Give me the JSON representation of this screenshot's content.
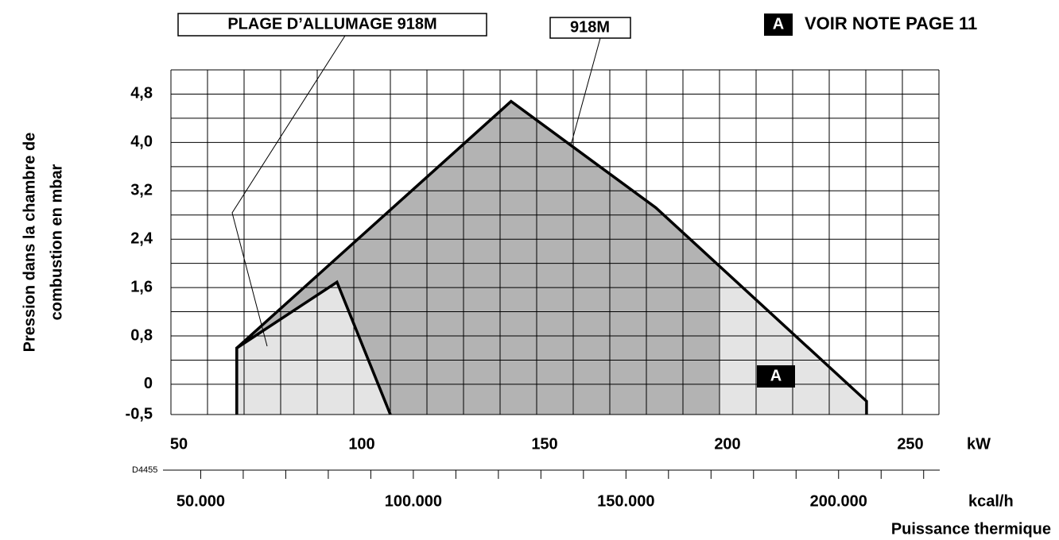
{
  "chart_data": {
    "type": "area",
    "code": "D4455",
    "ylabel": [
      "Pression dans la chambre de",
      "combustion en mbar"
    ],
    "xlabel": "Puissance thermique",
    "xunit": "kW",
    "x2unit": "kcal/h",
    "note": {
      "marker": "A",
      "text": "VOIR NOTE PAGE 11"
    },
    "annotation_region": {
      "label": "A",
      "x_from": 200
    },
    "fills": [
      "#b3b3b3",
      "#e4e4e4"
    ],
    "series": [
      {
        "name": "918M",
        "color": "#000000",
        "x": [
          68,
          68,
          143,
          182.6,
          240.2,
          240.2
        ],
        "values": [
          -0.5,
          0.6,
          4.68,
          2.92,
          -0.28,
          -0.5
        ]
      },
      {
        "name": "PLAGE D’ALLUMAGE 918M",
        "color": "#000000",
        "x": [
          68,
          68,
          95.4,
          110
        ],
        "values": [
          -0.5,
          0.6,
          1.69,
          -0.5
        ]
      }
    ],
    "xlim": [
      50,
      260
    ],
    "xticks": [
      50,
      100,
      150,
      200,
      250
    ],
    "xgrid": [
      50,
      60,
      70,
      80,
      90,
      100,
      110,
      120,
      130,
      140,
      150,
      160,
      170,
      180,
      190,
      200,
      210,
      220,
      230,
      240,
      250,
      260
    ],
    "ylim": [
      -0.5,
      5.2
    ],
    "yticks": [
      {
        "value": 4.8,
        "label": "4,8"
      },
      {
        "value": 4.0,
        "label": "4,0"
      },
      {
        "value": 3.2,
        "label": "3,2"
      },
      {
        "value": 2.4,
        "label": "2,4"
      },
      {
        "value": 1.6,
        "label": "1,6"
      },
      {
        "value": 0.8,
        "label": "0,8"
      },
      0,
      {
        "value": -0.5,
        "label": "-0,5"
      }
    ],
    "ygrid": [
      -0.5,
      0,
      0.4,
      0.8,
      1.2,
      1.6,
      2.0,
      2.4,
      2.8,
      3.2,
      3.6,
      4.0,
      4.4,
      4.8,
      5.2
    ],
    "x2lim": [
      43000,
      223600
    ],
    "x2ticks": [
      {
        "value": 50000,
        "label": "50.000"
      },
      {
        "value": 100000,
        "label": "100.000"
      },
      {
        "value": 150000,
        "label": "150.000"
      },
      {
        "value": 200000,
        "label": "200.000"
      }
    ],
    "x2minor": [
      50000,
      60000,
      70000,
      80000,
      90000,
      100000,
      110000,
      120000,
      130000,
      140000,
      150000,
      160000,
      170000,
      180000,
      190000,
      200000,
      210000,
      220000
    ],
    "grid": true
  }
}
